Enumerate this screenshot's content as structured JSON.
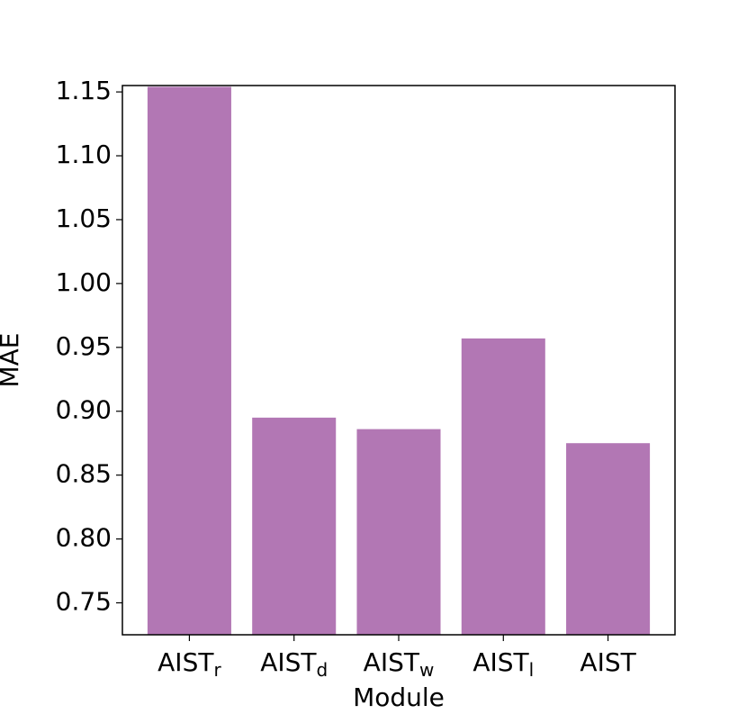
{
  "chart_data": {
    "type": "bar",
    "xlabel": "Module",
    "ylabel": "MAE",
    "categories": [
      {
        "label": "AIST",
        "sub": "r"
      },
      {
        "label": "AIST",
        "sub": "d"
      },
      {
        "label": "AIST",
        "sub": "w"
      },
      {
        "label": "AIST",
        "sub": "l"
      },
      {
        "label": "AIST"
      }
    ],
    "values": [
      1.154,
      0.895,
      0.886,
      0.957,
      0.875
    ],
    "color": "#b277b4",
    "ylim": [
      0.725,
      1.155
    ],
    "yticks": [
      0.75,
      {
        "value": 0.8,
        "label": "0.80"
      },
      0.85,
      {
        "value": 0.9,
        "label": "0.90"
      },
      0.95,
      {
        "value": 1.0,
        "label": "1.00"
      },
      1.05,
      {
        "value": 1.1,
        "label": "1.10"
      },
      1.15
    ]
  }
}
